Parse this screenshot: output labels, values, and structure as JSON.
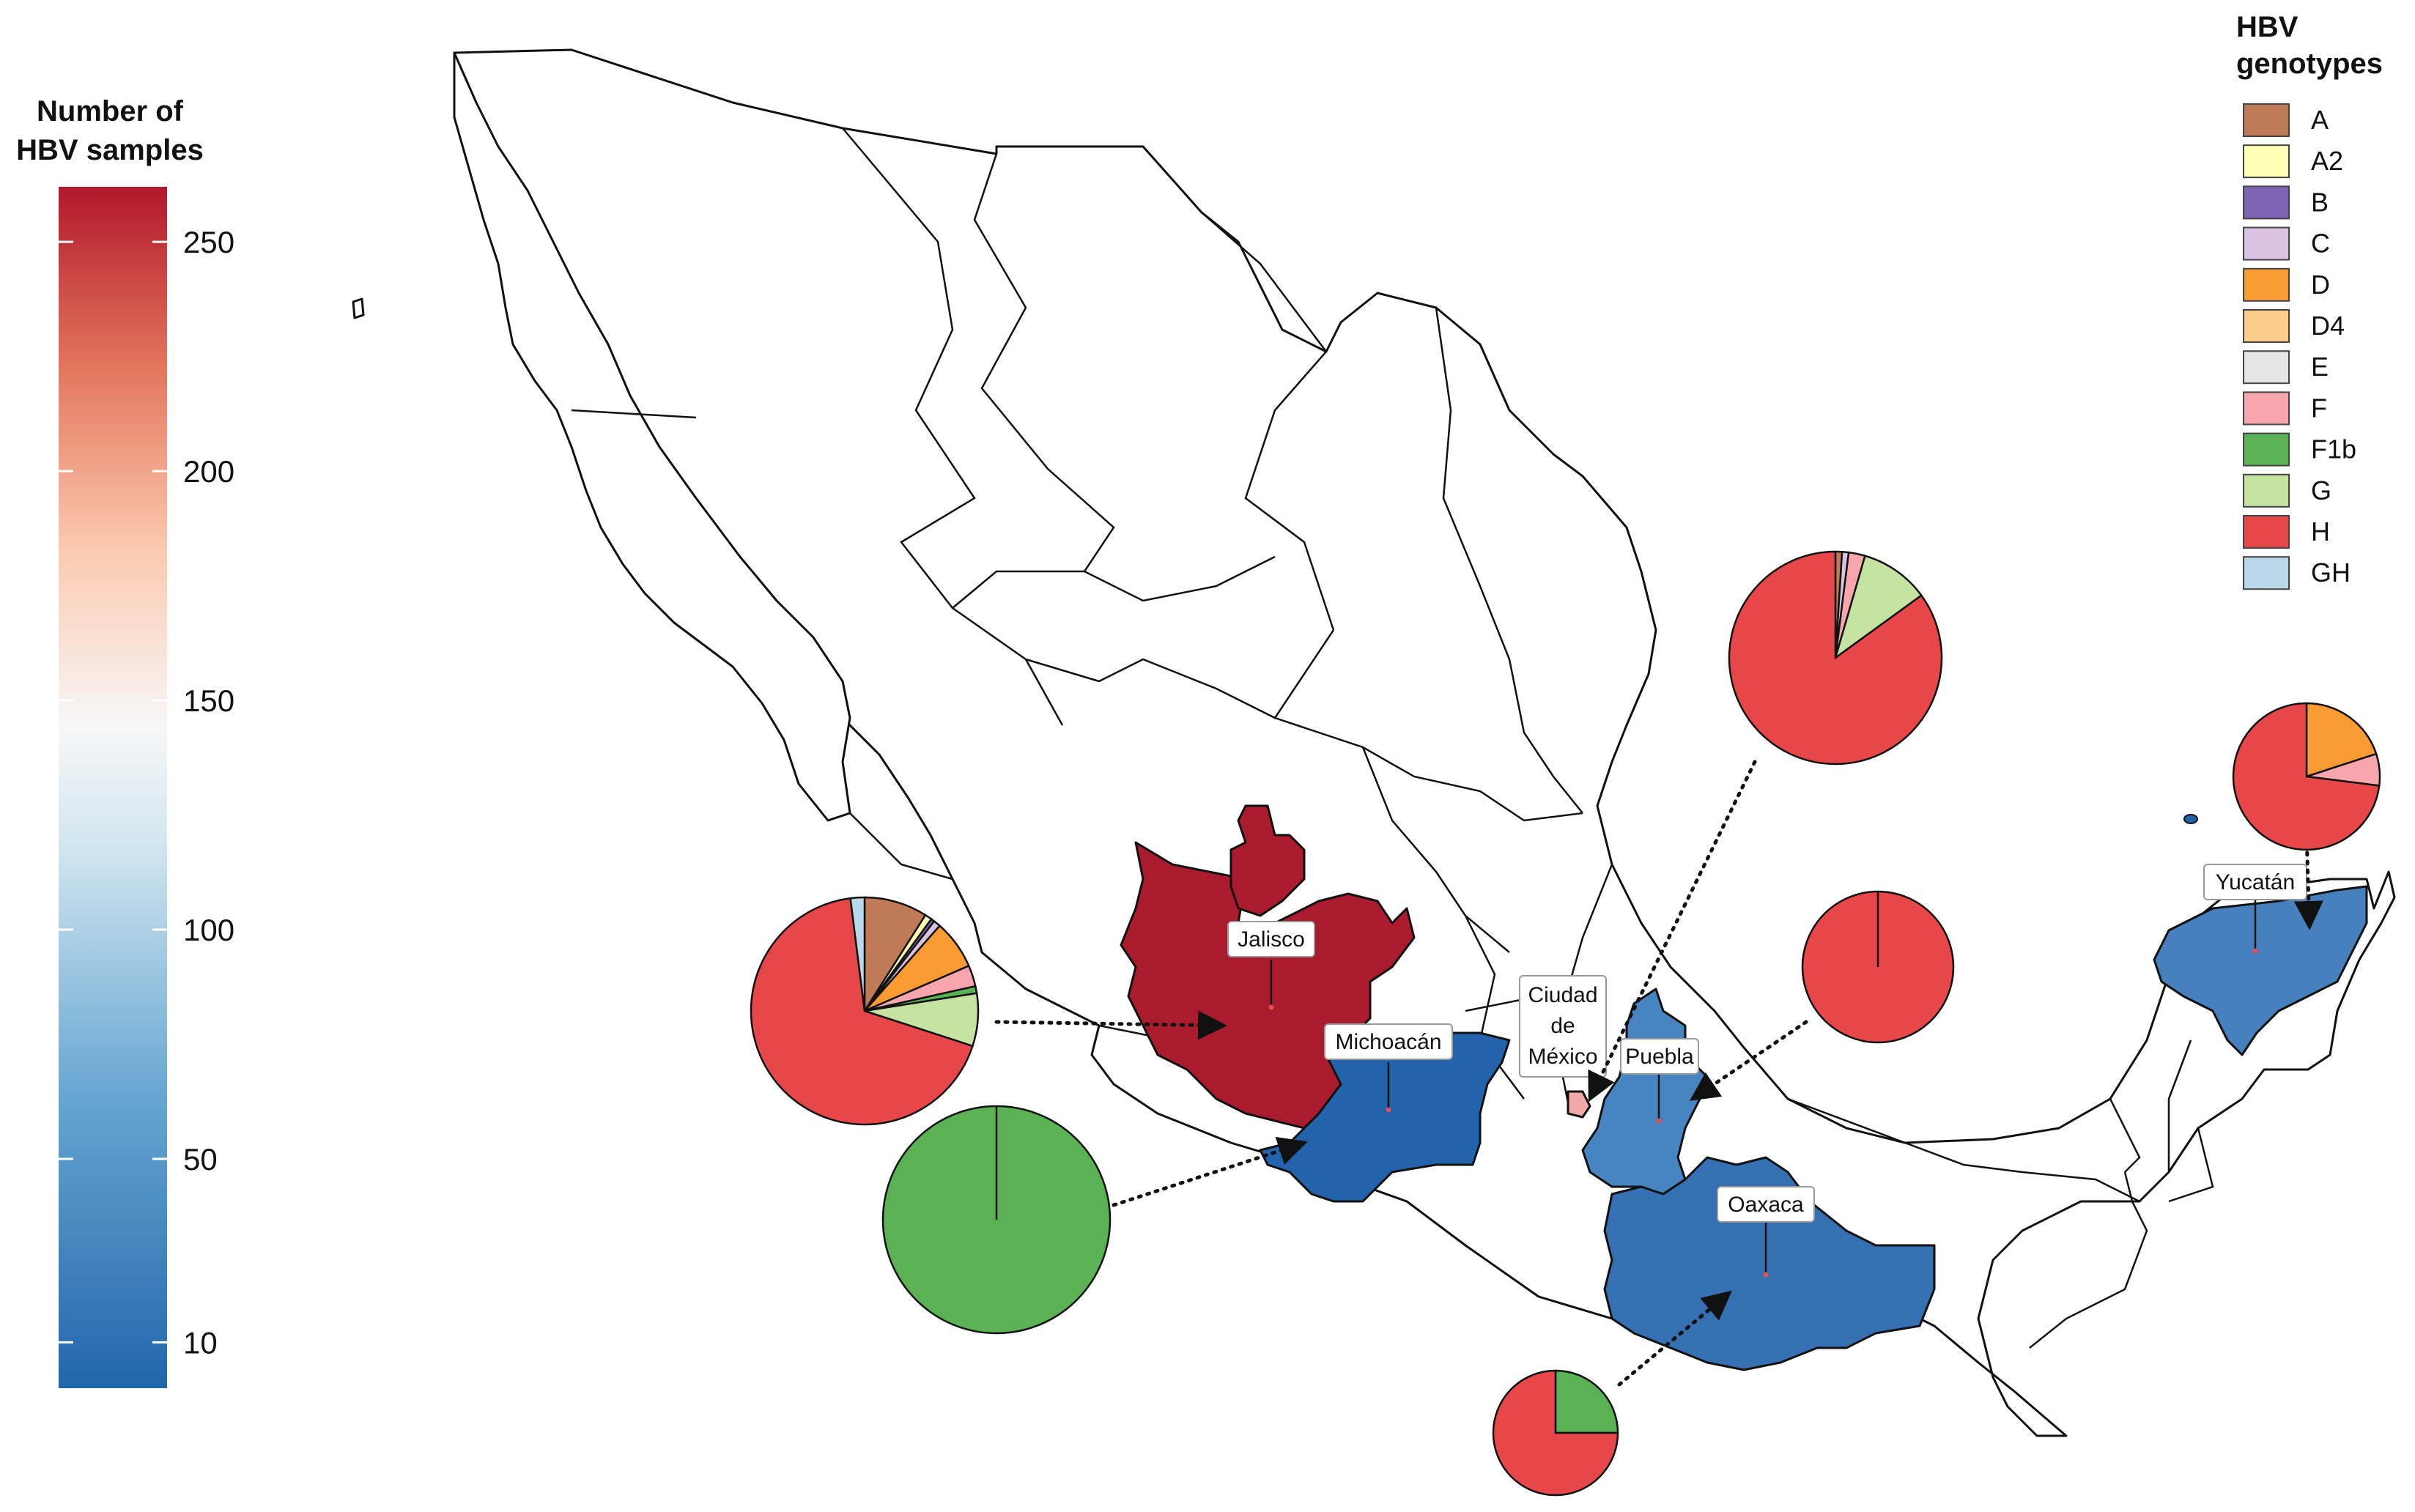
{
  "colorbar": {
    "title_line1": "Number of",
    "title_line2": "HBV samples",
    "ticks": [
      {
        "value": 10,
        "label": "10"
      },
      {
        "value": 50,
        "label": "50"
      },
      {
        "value": 100,
        "label": "100"
      },
      {
        "value": 150,
        "label": "150"
      },
      {
        "value": 200,
        "label": "200"
      },
      {
        "value": 250,
        "label": "250"
      }
    ],
    "range": [
      0,
      262
    ],
    "colors": {
      "low": "#2166ac",
      "mid": "#f7f7f7",
      "high": "#b2182b"
    }
  },
  "genotype_legend": {
    "title_line1": "HBV",
    "title_line2": "genotypes",
    "items": [
      {
        "key": "A",
        "label": "A",
        "color": "#c07a55"
      },
      {
        "key": "A2",
        "label": "A2",
        "color": "#ffffb3"
      },
      {
        "key": "B",
        "label": "B",
        "color": "#8064b4"
      },
      {
        "key": "C",
        "label": "C",
        "color": "#d9c3e0"
      },
      {
        "key": "D",
        "label": "D",
        "color": "#f99b32"
      },
      {
        "key": "D4",
        "label": "D4",
        "color": "#fdcb8a"
      },
      {
        "key": "E",
        "label": "E",
        "color": "#e5e5e5"
      },
      {
        "key": "F",
        "label": "F",
        "color": "#f7a6ad"
      },
      {
        "key": "F1b",
        "label": "F1b",
        "color": "#5bb255"
      },
      {
        "key": "G",
        "label": "G",
        "color": "#c6e2a0"
      },
      {
        "key": "H",
        "label": "H",
        "color": "#e84749"
      },
      {
        "key": "GH",
        "label": "GH",
        "color": "#b9d8ea"
      }
    ]
  },
  "states": {
    "jalisco": {
      "label": "Jalisco",
      "fill": "#aa1b2d"
    },
    "michoacan": {
      "label": "Michoacán",
      "fill": "#2263ab"
    },
    "cdmx": {
      "label_line1": "Ciudad",
      "label_line2": "de",
      "label_line3": "México",
      "fill": "#f4a7a7"
    },
    "puebla": {
      "label": "Puebla",
      "fill": "#4885c0"
    },
    "oaxaca": {
      "label": "Oaxaca",
      "fill": "#3570b3"
    },
    "yucatan": {
      "label": "Yucatán",
      "fill": "#4681bd"
    }
  },
  "chart_data": {
    "type": "pie",
    "note_free": true,
    "pies": [
      {
        "state": "Jalisco",
        "slices": [
          {
            "genotype": "A",
            "share": 0.09
          },
          {
            "genotype": "A2",
            "share": 0.01
          },
          {
            "genotype": "B",
            "share": 0.005
          },
          {
            "genotype": "C",
            "share": 0.01
          },
          {
            "genotype": "D",
            "share": 0.07
          },
          {
            "genotype": "F",
            "share": 0.03
          },
          {
            "genotype": "F1b",
            "share": 0.01
          },
          {
            "genotype": "G",
            "share": 0.075
          },
          {
            "genotype": "H",
            "share": 0.68
          },
          {
            "genotype": "GH",
            "share": 0.02
          }
        ]
      },
      {
        "state": "Michoacán",
        "slices": [
          {
            "genotype": "F1b",
            "share": 1.0
          }
        ]
      },
      {
        "state": "Ciudad de México",
        "slices": [
          {
            "genotype": "A",
            "share": 0.01
          },
          {
            "genotype": "C",
            "share": 0.01
          },
          {
            "genotype": "F",
            "share": 0.025
          },
          {
            "genotype": "G",
            "share": 0.105
          },
          {
            "genotype": "H",
            "share": 0.85
          }
        ]
      },
      {
        "state": "Puebla",
        "slices": [
          {
            "genotype": "H",
            "share": 1.0
          }
        ]
      },
      {
        "state": "Yucatán",
        "slices": [
          {
            "genotype": "D",
            "share": 0.2
          },
          {
            "genotype": "F",
            "share": 0.07
          },
          {
            "genotype": "H",
            "share": 0.73
          }
        ]
      },
      {
        "state": "Oaxaca",
        "slices": [
          {
            "genotype": "F1b",
            "share": 0.25
          },
          {
            "genotype": "H",
            "share": 0.75
          }
        ]
      }
    ]
  }
}
